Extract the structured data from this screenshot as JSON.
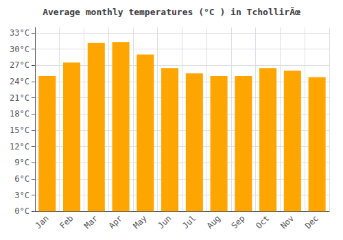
{
  "chart_data": {
    "type": "bar",
    "title": "Average monthly temperatures (°C ) in TchollirÃœ",
    "categories": [
      "Jan",
      "Feb",
      "Mar",
      "Apr",
      "May",
      "Jun",
      "Jul",
      "Aug",
      "Sep",
      "Oct",
      "Nov",
      "Dec"
    ],
    "values": [
      25.0,
      27.5,
      31.1,
      31.3,
      29.0,
      26.5,
      25.5,
      25.0,
      25.0,
      26.5,
      26.0,
      24.8
    ],
    "color": "#FFA500",
    "ylim": [
      0,
      34
    ],
    "yticks": [
      {
        "value": 0,
        "label": "0°C"
      },
      {
        "value": 3,
        "label": "3°C"
      },
      {
        "value": 6,
        "label": "6°C"
      },
      {
        "value": 9,
        "label": "9°C"
      },
      {
        "value": 12,
        "label": "12°C"
      },
      {
        "value": 15,
        "label": "15°C"
      },
      {
        "value": 18,
        "label": "18°C"
      },
      {
        "value": 21,
        "label": "21°C"
      },
      {
        "value": 24,
        "label": "24°C"
      },
      {
        "value": 27,
        "label": "27°C"
      },
      {
        "value": 30,
        "label": "30°C"
      },
      {
        "value": 33,
        "label": "33°C"
      }
    ],
    "grid": true
  }
}
